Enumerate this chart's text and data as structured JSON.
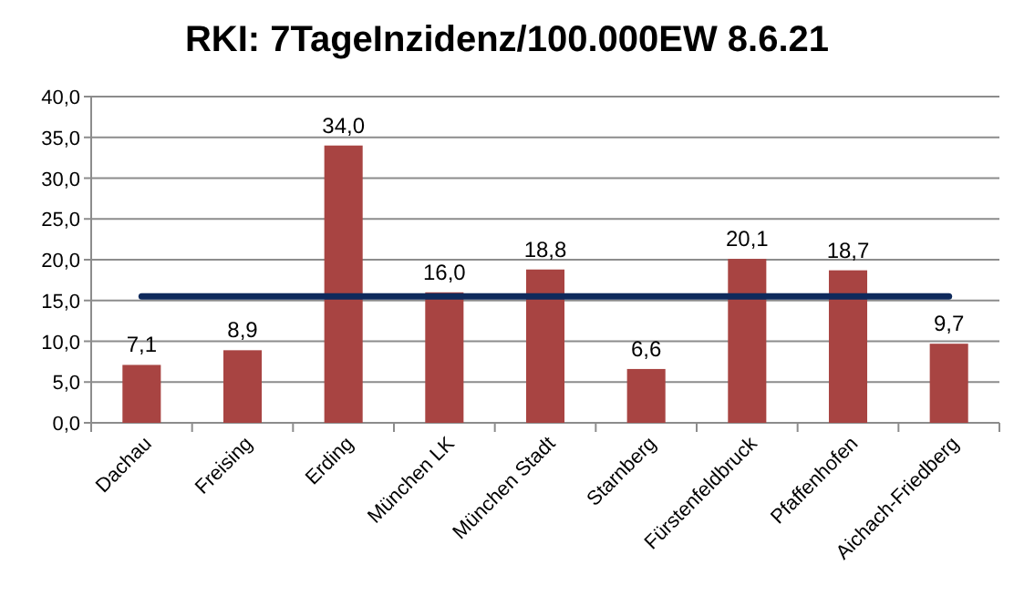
{
  "chart_data": {
    "type": "bar",
    "title": "RKI: 7TageInzidenz/100.000EW 8.6.21",
    "categories": [
      "Dachau",
      "Freising",
      "Erding",
      "München LK",
      "München Stadt",
      "Starnberg",
      "Fürstenfeldbruck",
      "Pfaffenhofen",
      "Aichach-Friedberg"
    ],
    "series": [
      {
        "color": "#a84442",
        "values": [
          7.1,
          8.9,
          34.0,
          16.0,
          18.8,
          6.6,
          20.1,
          18.7,
          9.7
        ],
        "value_labels": [
          "7,1",
          "8,9",
          "34,0",
          "16,0",
          "18,8",
          "6,6",
          "20,1",
          "18,7",
          "9,7"
        ]
      },
      {
        "type": "line",
        "color": "#0f2a5c",
        "values": [
          15.5,
          15.5,
          15.5,
          15.5,
          15.5,
          15.5,
          15.5,
          15.5,
          15.5
        ]
      }
    ],
    "ylim": [
      0,
      40
    ],
    "yticks": [
      {
        "value": 0,
        "label": "0,0"
      },
      {
        "value": 5,
        "label": "5,0"
      },
      {
        "value": 10,
        "label": "10,0"
      },
      {
        "value": 15,
        "label": "15,0"
      },
      {
        "value": 20,
        "label": "20,0"
      },
      {
        "value": 25,
        "label": "25,0"
      },
      {
        "value": 30,
        "label": "30,0"
      },
      {
        "value": 35,
        "label": "35,0"
      },
      {
        "value": 40,
        "label": "40,0"
      }
    ],
    "grid": "y",
    "marker": "none",
    "line_style": "solid"
  }
}
